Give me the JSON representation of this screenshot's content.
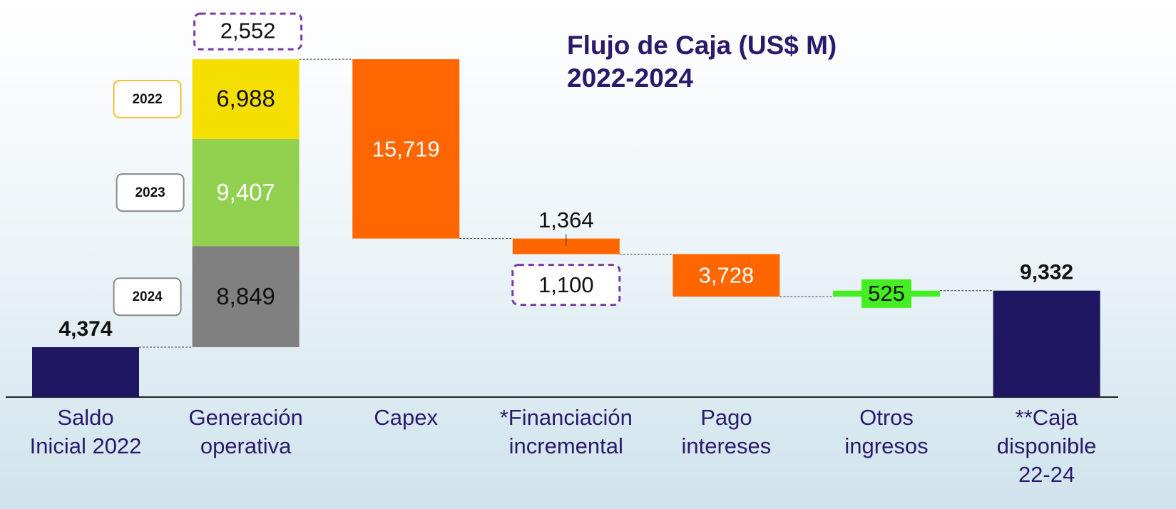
{
  "chart_data": {
    "type": "waterfall",
    "title": [
      "Flujo de Caja (US$ M)",
      "2022-2024"
    ],
    "categories": [
      [
        "Saldo",
        "Inicial 2022"
      ],
      [
        "Generación",
        "operativa"
      ],
      [
        "Capex"
      ],
      [
        "*Financiación",
        "incremental"
      ],
      [
        "Pago",
        "intereses"
      ],
      [
        "Otros",
        "ingresos"
      ],
      [
        "**Caja",
        "disponible",
        "22-24"
      ]
    ],
    "values": [
      4374,
      null,
      -15719,
      -1364,
      -3728,
      525,
      9332
    ],
    "value_labels": [
      "4,374",
      null,
      "15,719",
      "1,364",
      "3,728",
      "525",
      "9,332"
    ],
    "totals": [
      true,
      false,
      false,
      false,
      false,
      false,
      true
    ],
    "colors": [
      "#1e1660",
      null,
      "#ff6600",
      "#ff6600",
      "#ff6600",
      "#44ee22",
      "#1e1660"
    ],
    "series": [
      {
        "name": "2024",
        "color": "#808080",
        "values": [
          null,
          8849,
          null,
          null,
          null,
          null,
          null
        ],
        "value_labels": [
          null,
          "8,849",
          null,
          null,
          null,
          null,
          null
        ]
      },
      {
        "name": "2023",
        "color": "#92d050",
        "values": [
          null,
          9407,
          null,
          null,
          null,
          null,
          null
        ],
        "value_labels": [
          null,
          "9,407",
          null,
          null,
          null,
          null,
          null
        ]
      },
      {
        "name": "2022",
        "color": "#f5df00",
        "values": [
          null,
          6988,
          null,
          null,
          null,
          null,
          null
        ],
        "value_labels": [
          null,
          "6,988",
          null,
          null,
          null,
          null,
          null
        ]
      }
    ],
    "annotations": [
      "2,552",
      "1,100"
    ],
    "ylim": [
      0,
      30000
    ]
  }
}
